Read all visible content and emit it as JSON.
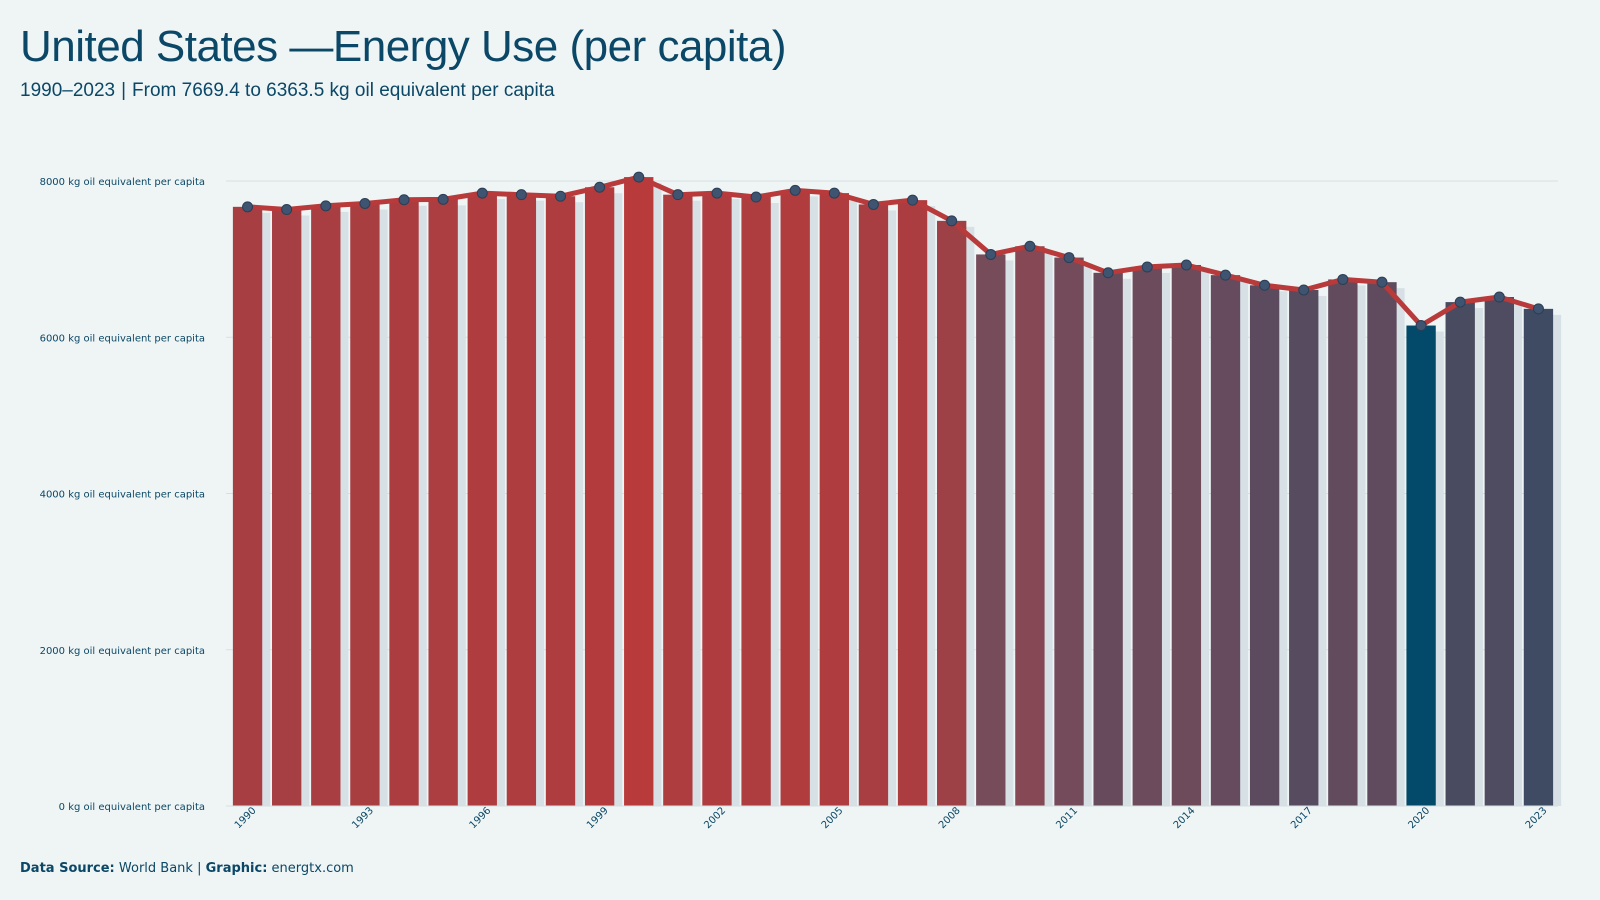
{
  "title": "United States —Energy Use (per capita)",
  "subtitle": {
    "range": "1990–2023",
    "separator": "|",
    "detail": "From 7669.4 to 6363.5  kg oil equivalent per capita"
  },
  "footer": {
    "source_label": "Data Source:",
    "source_value": "World Bank",
    "separator": "|",
    "graphic_label": "Graphic:",
    "graphic_value": "energtx.com"
  },
  "colors": {
    "background": "#eff5f5",
    "text": "#0b4766",
    "line": "#b83a3a",
    "marker": "#3e5470",
    "bar_high": "#b83a3a",
    "bar_low": "#034a6a",
    "gridline": "#d5e0e3",
    "bar_shadow": "#d6e0e5"
  },
  "chart_data": {
    "type": "bar",
    "overlay": "line",
    "x": [
      1990,
      1991,
      1992,
      1993,
      1994,
      1995,
      1996,
      1997,
      1998,
      1999,
      2000,
      2001,
      2002,
      2003,
      2004,
      2005,
      2006,
      2007,
      2008,
      2009,
      2010,
      2011,
      2012,
      2013,
      2014,
      2015,
      2016,
      2017,
      2018,
      2019,
      2020,
      2021,
      2022,
      2023
    ],
    "values": [
      7669.4,
      7635,
      7682,
      7712,
      7760,
      7765,
      7845,
      7825,
      7805,
      7920,
      8050,
      7825,
      7845,
      7795,
      7880,
      7845,
      7700,
      7755,
      7490,
      7060,
      7165,
      7020,
      6825,
      6900,
      6925,
      6795,
      6665,
      6605,
      6740,
      6705,
      6150,
      6450,
      6515,
      6363.5
    ],
    "ylim": [
      0,
      8000
    ],
    "yticks": [
      {
        "value": 0,
        "label": "0 kg oil equivalent per capita"
      },
      {
        "value": 2000,
        "label": "2000 kg oil equivalent per capita"
      },
      {
        "value": 4000,
        "label": "4000 kg oil equivalent per capita"
      },
      {
        "value": 6000,
        "label": "6000 kg oil equivalent per capita"
      },
      {
        "value": 8000,
        "label": "8000 kg oil equivalent per capita"
      }
    ],
    "xticks": [
      "1990",
      "1993",
      "1996",
      "1999",
      "2002",
      "2005",
      "2008",
      "2011",
      "2014",
      "2017",
      "2020",
      "2023"
    ],
    "grid": "horizontal",
    "legend": "none"
  }
}
